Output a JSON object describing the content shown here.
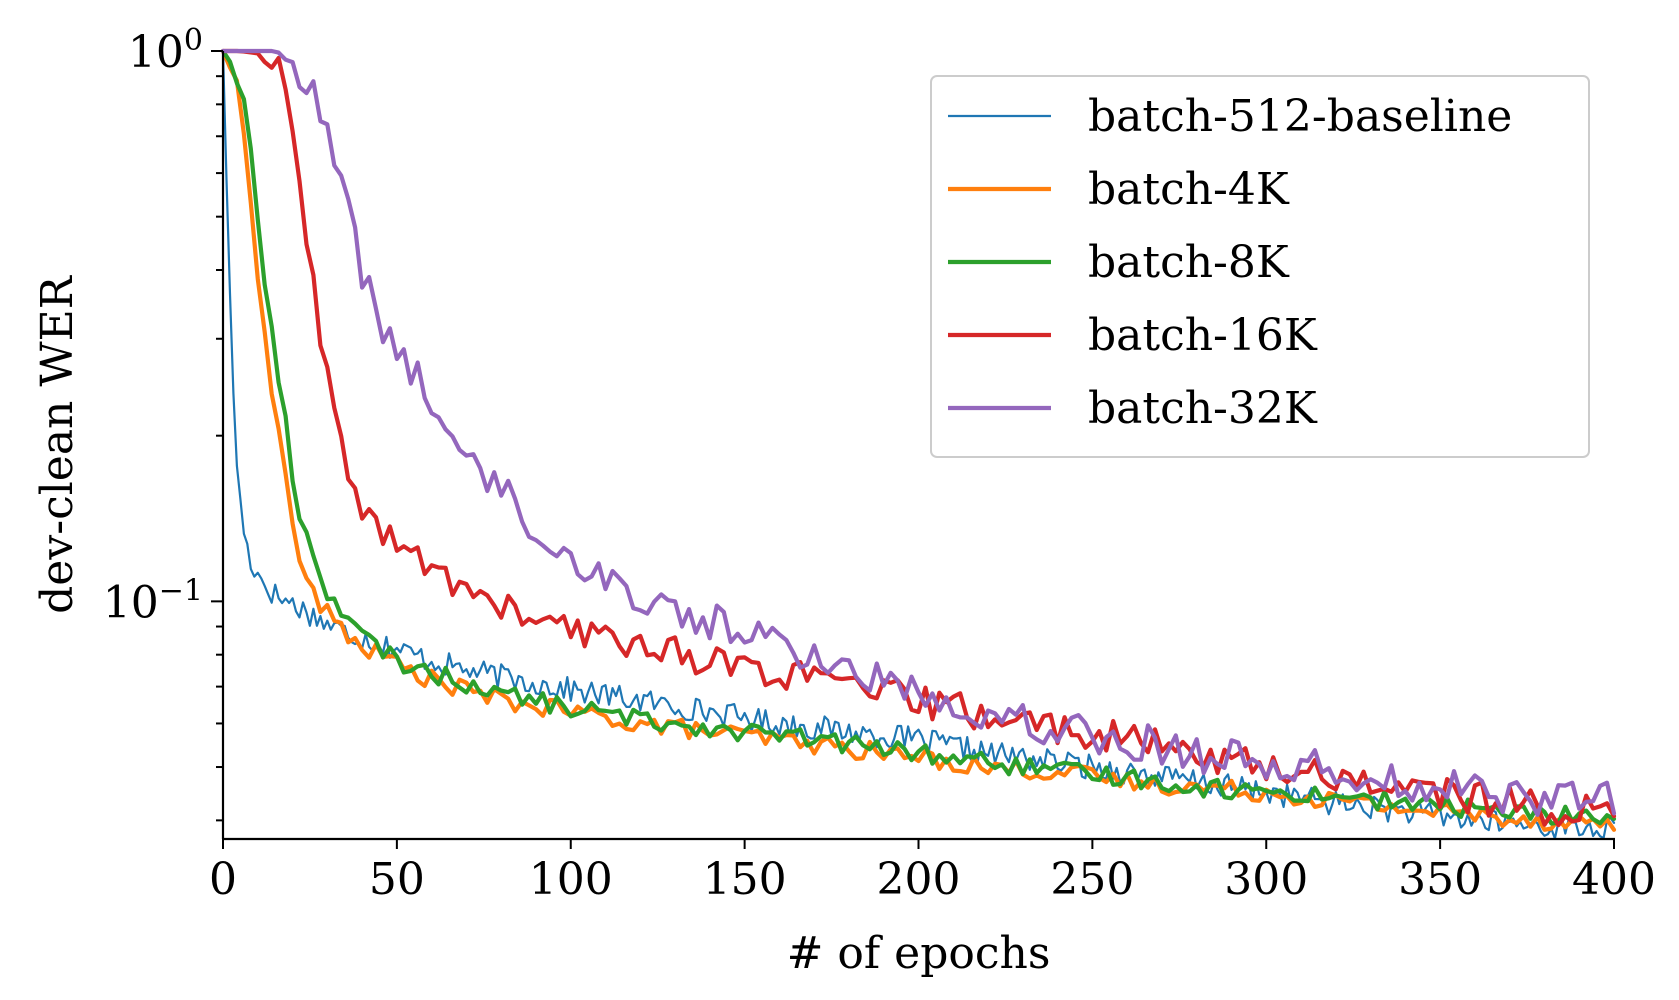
{
  "chart_data": {
    "type": "line",
    "title": "",
    "xlabel": "# of epochs",
    "ylabel": "dev-clean WER",
    "xlim": [
      0,
      400
    ],
    "ylim": [
      0.037,
      1.0
    ],
    "yscale": "log",
    "grid": false,
    "legend_position": "top-right",
    "xticks": [
      0,
      50,
      100,
      150,
      200,
      250,
      300,
      350,
      400
    ],
    "xtick_labels": [
      "0",
      "50",
      "100",
      "150",
      "200",
      "250",
      "300",
      "350",
      "400"
    ],
    "yticks_major": [
      {
        "value": 1.0,
        "base": "10",
        "exp": "0"
      },
      {
        "value": 0.1,
        "base": "10",
        "exp": "−1"
      }
    ],
    "series": [
      {
        "name": "batch-512-baseline",
        "color": "#1f77b4",
        "x": [
          0,
          1,
          2,
          3,
          4,
          5,
          6,
          7,
          8,
          10,
          12,
          14,
          16,
          20,
          25,
          30,
          35,
          40,
          50,
          60,
          70,
          80,
          90,
          100,
          120,
          140,
          160,
          180,
          200,
          220,
          240,
          260,
          280,
          300,
          320,
          340,
          360,
          380,
          400
        ],
        "y": [
          1.0,
          0.6,
          0.35,
          0.24,
          0.18,
          0.15,
          0.135,
          0.125,
          0.118,
          0.112,
          0.108,
          0.104,
          0.102,
          0.099,
          0.095,
          0.091,
          0.088,
          0.086,
          0.082,
          0.078,
          0.075,
          0.073,
          0.071,
          0.069,
          0.066,
          0.063,
          0.06,
          0.058,
          0.056,
          0.053,
          0.051,
          0.049,
          0.047,
          0.045,
          0.043,
          0.0415,
          0.04,
          0.039,
          0.0385
        ]
      },
      {
        "name": "batch-4K",
        "color": "#ff7f0e",
        "x": [
          0,
          2,
          4,
          6,
          8,
          10,
          12,
          15,
          18,
          20,
          22,
          25,
          28,
          30,
          35,
          40,
          50,
          60,
          70,
          80,
          100,
          120,
          140,
          160,
          180,
          200,
          220,
          240,
          260,
          280,
          300,
          320,
          340,
          360,
          380,
          400
        ],
        "y": [
          1.0,
          0.95,
          0.85,
          0.7,
          0.55,
          0.4,
          0.3,
          0.22,
          0.17,
          0.14,
          0.12,
          0.105,
          0.098,
          0.095,
          0.088,
          0.083,
          0.077,
          0.072,
          0.069,
          0.066,
          0.063,
          0.06,
          0.058,
          0.056,
          0.054,
          0.052,
          0.05,
          0.049,
          0.047,
          0.046,
          0.045,
          0.0435,
          0.042,
          0.041,
          0.04,
          0.0395
        ]
      },
      {
        "name": "batch-8K",
        "color": "#2ca02c",
        "x": [
          0,
          2,
          4,
          6,
          8,
          10,
          12,
          15,
          18,
          20,
          22,
          25,
          28,
          30,
          35,
          40,
          50,
          60,
          70,
          80,
          100,
          120,
          140,
          160,
          180,
          200,
          220,
          240,
          260,
          280,
          300,
          320,
          340,
          360,
          380,
          400
        ],
        "y": [
          1.0,
          0.97,
          0.9,
          0.8,
          0.65,
          0.5,
          0.38,
          0.28,
          0.21,
          0.17,
          0.145,
          0.125,
          0.112,
          0.105,
          0.094,
          0.086,
          0.078,
          0.074,
          0.071,
          0.068,
          0.064,
          0.061,
          0.059,
          0.057,
          0.055,
          0.053,
          0.051,
          0.049,
          0.048,
          0.046,
          0.045,
          0.0445,
          0.043,
          0.042,
          0.041,
          0.0405
        ]
      },
      {
        "name": "batch-16K",
        "color": "#d62728",
        "x": [
          0,
          5,
          10,
          15,
          18,
          20,
          22,
          25,
          28,
          30,
          32,
          35,
          40,
          45,
          50,
          55,
          60,
          70,
          80,
          90,
          100,
          110,
          120,
          130,
          140,
          150,
          160,
          170,
          180,
          190,
          200,
          210,
          220,
          240,
          260,
          280,
          300,
          320,
          340,
          360,
          380,
          400
        ],
        "y": [
          1.0,
          1.0,
          0.99,
          0.95,
          0.85,
          0.7,
          0.55,
          0.42,
          0.3,
          0.25,
          0.21,
          0.18,
          0.15,
          0.135,
          0.125,
          0.12,
          0.115,
          0.105,
          0.098,
          0.092,
          0.088,
          0.086,
          0.084,
          0.081,
          0.078,
          0.076,
          0.074,
          0.072,
          0.07,
          0.068,
          0.066,
          0.064,
          0.062,
          0.059,
          0.056,
          0.053,
          0.05,
          0.048,
          0.046,
          0.044,
          0.042,
          0.041
        ]
      },
      {
        "name": "batch-32K",
        "color": "#9467bd",
        "x": [
          0,
          5,
          10,
          15,
          18,
          20,
          22,
          25,
          30,
          35,
          40,
          45,
          50,
          55,
          60,
          70,
          80,
          90,
          100,
          110,
          120,
          130,
          140,
          150,
          160,
          170,
          180,
          190,
          200,
          210,
          220,
          240,
          260,
          280,
          300,
          320,
          340,
          360,
          380,
          400
        ],
        "y": [
          1.0,
          1.0,
          1.0,
          1.0,
          0.98,
          0.96,
          0.92,
          0.85,
          0.7,
          0.55,
          0.4,
          0.32,
          0.29,
          0.26,
          0.22,
          0.19,
          0.16,
          0.135,
          0.12,
          0.11,
          0.102,
          0.096,
          0.092,
          0.088,
          0.084,
          0.079,
          0.075,
          0.072,
          0.069,
          0.066,
          0.063,
          0.059,
          0.056,
          0.053,
          0.051,
          0.049,
          0.047,
          0.045,
          0.044,
          0.0435
        ]
      }
    ]
  }
}
